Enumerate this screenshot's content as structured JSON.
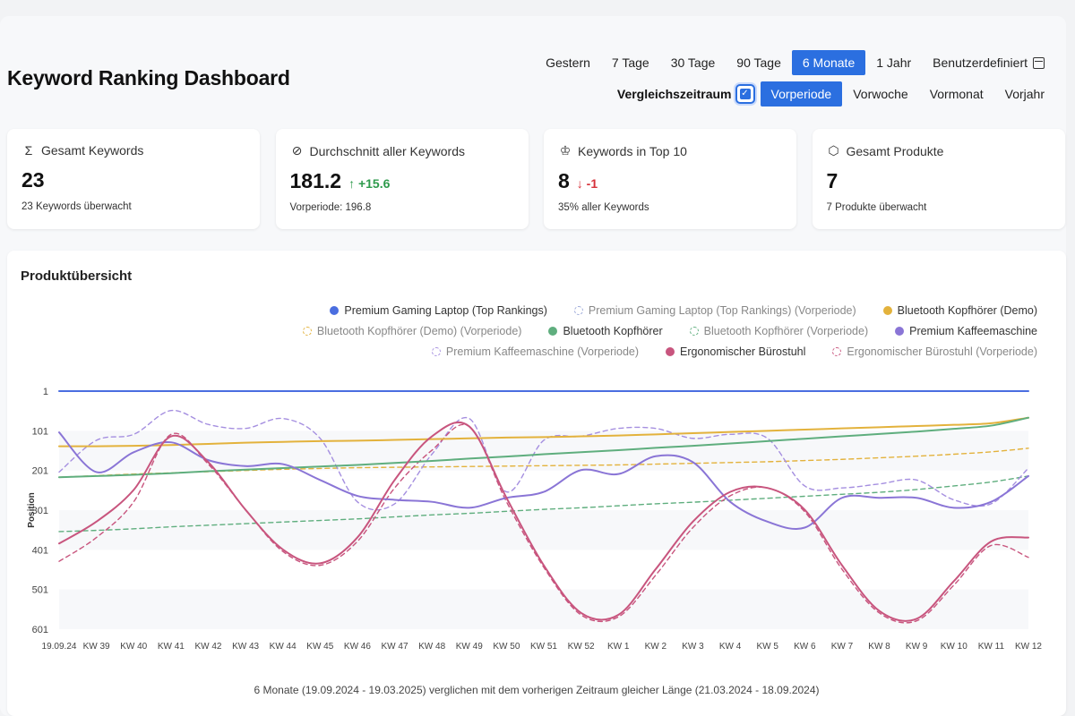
{
  "header": {
    "title": "Keyword Ranking Dashboard"
  },
  "range_options": [
    {
      "label": "Gestern",
      "active": false
    },
    {
      "label": "7 Tage",
      "active": false
    },
    {
      "label": "30 Tage",
      "active": false
    },
    {
      "label": "90 Tage",
      "active": false
    },
    {
      "label": "6 Monate",
      "active": true
    },
    {
      "label": "1 Jahr",
      "active": false
    },
    {
      "label": "Benutzerdefiniert",
      "active": false,
      "icon": "calendar-icon"
    }
  ],
  "compare": {
    "label": "Vergleichszeitraum",
    "checked": true,
    "options": [
      {
        "label": "Vorperiode",
        "active": true
      },
      {
        "label": "Vorwoche",
        "active": false
      },
      {
        "label": "Vormonat",
        "active": false
      },
      {
        "label": "Vorjahr",
        "active": false
      }
    ]
  },
  "cards": [
    {
      "icon": "sigma-icon",
      "label": "Gesamt Keywords",
      "value": "23",
      "delta": "",
      "delta_dir": "",
      "sub": "23 Keywords überwacht"
    },
    {
      "icon": "average-icon",
      "label": "Durchschnitt aller Keywords",
      "value": "181.2",
      "delta": "↑ +15.6",
      "delta_dir": "up",
      "sub": "Vorperiode: 196.8"
    },
    {
      "icon": "trophy-icon",
      "label": "Keywords in Top 10",
      "value": "8",
      "delta": "↓ -1",
      "delta_dir": "down",
      "sub": "35% aller Keywords"
    },
    {
      "icon": "box-icon",
      "label": "Gesamt Produkte",
      "value": "7",
      "delta": "",
      "delta_dir": "",
      "sub": "7 Produkte überwacht"
    }
  ],
  "panel": {
    "title": "Produktübersicht",
    "footnote": "6 Monate (19.09.2024 - 19.03.2025) verglichen mit dem vorherigen Zeitraum gleicher Länge (21.03.2024 - 18.09.2024)"
  },
  "chart_data": {
    "type": "line",
    "ylabel": "Position",
    "y_reversed": true,
    "ylim": [
      1,
      601
    ],
    "y_ticks": [
      1,
      101,
      201,
      301,
      401,
      501,
      601
    ],
    "x_labels": [
      "19.09.24",
      "KW 39",
      "KW 40",
      "KW 41",
      "KW 42",
      "KW 43",
      "KW 44",
      "KW 45",
      "KW 46",
      "KW 47",
      "KW 48",
      "KW 49",
      "KW 50",
      "KW 51",
      "KW 52",
      "KW 1",
      "KW 2",
      "KW 3",
      "KW 4",
      "KW 5",
      "KW 6",
      "KW 7",
      "KW 8",
      "KW 9",
      "KW 10",
      "KW 11",
      "KW 12"
    ],
    "legend_position": "top-right",
    "series": [
      {
        "name": "Premium Gaming Laptop (Top Rankings)",
        "color": "#4a6ee0",
        "dashed": false,
        "values": [
          1,
          1,
          1,
          1,
          1,
          1,
          1,
          1,
          1,
          1,
          1,
          1,
          1,
          1,
          1,
          1,
          1,
          1,
          1,
          1,
          1,
          1,
          1,
          1,
          1,
          1,
          1
        ]
      },
      {
        "name": "Premium Gaming Laptop (Top Rankings) (Vorperiode)",
        "color": "#9aa8d8",
        "dashed": true,
        "values": []
      },
      {
        "name": "Bluetooth Kopfhörer (Demo)",
        "color": "#e3b23c",
        "dashed": false,
        "values": [
          140,
          140,
          139,
          137,
          134,
          131,
          129,
          127,
          126,
          124,
          122,
          120,
          118,
          117,
          115,
          113,
          110,
          107,
          104,
          101,
          98,
          95,
          92,
          89,
          86,
          82,
          68
        ]
      },
      {
        "name": "Bluetooth Kopfhörer (Demo) (Vorperiode)",
        "color": "#e3b23c",
        "dashed": true,
        "values": [
          218,
          214,
          210,
          207,
          204,
          201,
          198,
          196,
          194,
          193,
          192,
          191,
          190,
          189,
          188,
          187,
          185,
          183,
          181,
          179,
          176,
          173,
          169,
          165,
          160,
          154,
          145
        ]
      },
      {
        "name": "Bluetooth Kopfhörer",
        "color": "#5fae7e",
        "dashed": false,
        "values": [
          218,
          215,
          212,
          208,
          203,
          199,
          195,
          191,
          187,
          182,
          177,
          171,
          166,
          160,
          155,
          150,
          144,
          139,
          133,
          127,
          121,
          115,
          109,
          103,
          96,
          88,
          68
        ]
      },
      {
        "name": "Bluetooth Kopfhörer (Vorperiode)",
        "color": "#5fae7e",
        "dashed": true,
        "values": [
          355,
          352,
          348,
          343,
          339,
          335,
          331,
          327,
          323,
          318,
          313,
          309,
          304,
          299,
          295,
          290,
          285,
          281,
          276,
          271,
          266,
          261,
          256,
          249,
          240,
          230,
          215
        ]
      },
      {
        "name": "Premium Kaffeemaschine",
        "color": "#8a75d6",
        "dashed": false,
        "values": [
          105,
          205,
          155,
          130,
          175,
          190,
          185,
          225,
          265,
          275,
          280,
          295,
          270,
          255,
          200,
          210,
          165,
          180,
          280,
          330,
          345,
          270,
          270,
          270,
          295,
          280,
          215
        ]
      },
      {
        "name": "Premium Kaffeemaschine (Vorperiode)",
        "color": "#a58fe0",
        "dashed": true,
        "values": [
          205,
          125,
          110,
          50,
          85,
          95,
          70,
          120,
          280,
          285,
          160,
          70,
          255,
          125,
          115,
          95,
          95,
          120,
          110,
          120,
          240,
          245,
          235,
          225,
          275,
          285,
          195
        ]
      },
      {
        "name": "Ergonomischer Bürostuhl",
        "color": "#c8557e",
        "dashed": false,
        "values": [
          385,
          330,
          250,
          115,
          180,
          300,
          400,
          435,
          370,
          225,
          115,
          90,
          270,
          440,
          560,
          565,
          450,
          330,
          255,
          245,
          300,
          440,
          555,
          575,
          480,
          380,
          370
        ]
      },
      {
        "name": "Ergonomischer Bürostuhl (Vorperiode)",
        "color": "#c8557e",
        "dashed": true,
        "values": [
          430,
          370,
          280,
          110,
          185,
          300,
          405,
          440,
          380,
          245,
          150,
          90,
          280,
          445,
          565,
          570,
          465,
          345,
          265,
          245,
          305,
          450,
          560,
          580,
          490,
          390,
          420
        ]
      }
    ]
  }
}
